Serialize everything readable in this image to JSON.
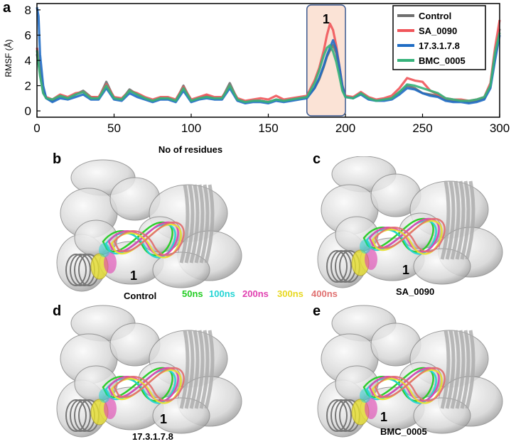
{
  "panels": {
    "a": "a",
    "b": "b",
    "c": "c",
    "d": "d",
    "e": "e"
  },
  "chart_data": {
    "type": "line",
    "xlabel": "No of residues",
    "ylabel": "RMSF (Å)",
    "xlim": [
      0,
      300
    ],
    "ylim": [
      -0.5,
      8.5
    ],
    "xticks": [
      "0",
      "50",
      "100",
      "150",
      "200",
      "250",
      "300"
    ],
    "yticks": [
      "0",
      "2",
      "4",
      "6",
      "8"
    ],
    "legend_position": "top-right",
    "highlight_region": {
      "label": "1",
      "x_from": 175,
      "x_to": 200
    },
    "series": [
      {
        "name": "Control",
        "color": "#6e6e6e",
        "x": [
          0,
          2,
          4,
          6,
          10,
          15,
          20,
          25,
          30,
          35,
          40,
          45,
          50,
          55,
          60,
          65,
          70,
          75,
          80,
          85,
          90,
          95,
          100,
          105,
          110,
          115,
          120,
          125,
          130,
          135,
          140,
          145,
          150,
          155,
          160,
          165,
          170,
          175,
          180,
          183,
          186,
          188,
          190,
          192,
          194,
          196,
          198,
          200,
          205,
          210,
          215,
          220,
          225,
          230,
          235,
          240,
          245,
          250,
          255,
          260,
          265,
          270,
          275,
          280,
          285,
          290,
          294,
          297,
          300
        ],
        "y": [
          4.5,
          3.0,
          1.5,
          1.0,
          0.8,
          1.2,
          1.0,
          1.3,
          1.6,
          1.1,
          1.0,
          2.3,
          1.0,
          0.9,
          1.7,
          1.3,
          1.0,
          0.8,
          1.0,
          1.0,
          0.8,
          2.0,
          0.8,
          1.0,
          1.2,
          1.0,
          1.0,
          2.2,
          0.9,
          0.7,
          0.8,
          0.8,
          0.7,
          0.9,
          0.8,
          0.9,
          1.0,
          1.1,
          1.8,
          2.5,
          3.5,
          4.3,
          4.8,
          5.2,
          4.6,
          3.4,
          1.8,
          1.1,
          1.0,
          1.4,
          1.0,
          0.8,
          0.9,
          1.0,
          1.5,
          2.0,
          1.8,
          1.4,
          1.3,
          1.2,
          0.9,
          0.8,
          0.8,
          0.7,
          0.8,
          1.0,
          2.0,
          4.5,
          6.5
        ]
      },
      {
        "name": "SA_0090",
        "color": "#f0555a",
        "x": [
          0,
          2,
          4,
          6,
          10,
          15,
          20,
          25,
          30,
          35,
          40,
          45,
          50,
          55,
          60,
          65,
          70,
          75,
          80,
          85,
          90,
          95,
          100,
          105,
          110,
          115,
          120,
          125,
          130,
          135,
          140,
          145,
          150,
          155,
          160,
          165,
          170,
          175,
          180,
          183,
          186,
          188,
          190,
          192,
          194,
          196,
          198,
          200,
          205,
          210,
          215,
          220,
          225,
          230,
          235,
          240,
          245,
          250,
          255,
          260,
          265,
          270,
          275,
          280,
          285,
          290,
          294,
          297,
          300
        ],
        "y": [
          5.0,
          3.2,
          1.6,
          1.1,
          0.9,
          1.3,
          1.1,
          1.4,
          1.5,
          1.1,
          1.1,
          2.1,
          1.1,
          1.0,
          1.6,
          1.4,
          1.1,
          0.9,
          1.1,
          1.1,
          0.9,
          1.9,
          0.9,
          1.1,
          1.3,
          1.1,
          1.1,
          2.0,
          1.0,
          0.8,
          0.9,
          1.0,
          0.9,
          1.2,
          0.9,
          1.0,
          1.1,
          1.2,
          2.4,
          3.4,
          4.8,
          6.0,
          6.9,
          6.4,
          5.2,
          3.6,
          2.0,
          1.2,
          1.1,
          1.5,
          1.1,
          0.9,
          1.0,
          1.2,
          1.8,
          2.6,
          2.4,
          2.3,
          1.6,
          1.3,
          1.0,
          0.9,
          0.9,
          0.8,
          0.9,
          1.1,
          2.2,
          5.0,
          7.2
        ]
      },
      {
        "name": "17.3.1.7.8",
        "color": "#1f6cc4",
        "x": [
          0,
          1,
          2,
          4,
          6,
          10,
          15,
          20,
          25,
          30,
          35,
          40,
          45,
          50,
          55,
          60,
          65,
          70,
          75,
          80,
          85,
          90,
          95,
          100,
          105,
          110,
          115,
          120,
          125,
          130,
          135,
          140,
          145,
          150,
          155,
          160,
          165,
          170,
          175,
          180,
          183,
          186,
          188,
          190,
          192,
          194,
          196,
          198,
          200,
          205,
          210,
          215,
          220,
          225,
          230,
          235,
          240,
          245,
          250,
          255,
          260,
          265,
          270,
          275,
          280,
          285,
          290,
          294,
          297,
          300
        ],
        "y": [
          8.2,
          7.5,
          4.5,
          2.0,
          1.0,
          0.7,
          1.0,
          0.9,
          1.1,
          1.3,
          0.9,
          0.9,
          1.8,
          0.9,
          0.8,
          1.4,
          1.1,
          0.9,
          0.7,
          0.9,
          0.9,
          0.7,
          1.6,
          0.7,
          0.9,
          1.0,
          0.9,
          0.9,
          1.8,
          0.8,
          0.6,
          0.7,
          0.7,
          0.6,
          0.8,
          0.7,
          0.8,
          0.9,
          1.0,
          1.8,
          2.6,
          3.6,
          4.4,
          5.0,
          5.6,
          4.9,
          3.6,
          2.0,
          1.1,
          1.0,
          1.3,
          0.9,
          0.8,
          0.8,
          0.9,
          1.3,
          1.8,
          1.7,
          1.4,
          1.2,
          1.1,
          0.8,
          0.7,
          0.7,
          0.6,
          0.7,
          0.9,
          1.8,
          4.0,
          6.0
        ]
      },
      {
        "name": "BMC_0005",
        "color": "#35b27a",
        "x": [
          0,
          2,
          4,
          6,
          10,
          15,
          20,
          25,
          30,
          35,
          40,
          45,
          50,
          55,
          60,
          65,
          70,
          75,
          80,
          85,
          90,
          95,
          100,
          105,
          110,
          115,
          120,
          125,
          130,
          135,
          140,
          145,
          150,
          155,
          160,
          165,
          170,
          175,
          180,
          183,
          186,
          188,
          190,
          192,
          194,
          196,
          198,
          200,
          205,
          210,
          215,
          220,
          225,
          230,
          235,
          240,
          245,
          250,
          255,
          260,
          265,
          270,
          275,
          280,
          285,
          290,
          294,
          297,
          300
        ],
        "y": [
          4.8,
          2.8,
          1.4,
          1.0,
          0.9,
          1.2,
          1.0,
          1.3,
          1.5,
          1.0,
          1.0,
          2.0,
          1.0,
          0.9,
          1.6,
          1.3,
          1.0,
          0.8,
          1.0,
          1.0,
          0.8,
          1.8,
          0.8,
          1.0,
          1.1,
          1.0,
          1.0,
          2.0,
          0.9,
          0.7,
          0.8,
          0.8,
          0.7,
          0.9,
          0.8,
          0.9,
          1.0,
          1.1,
          2.2,
          3.2,
          4.4,
          5.0,
          5.2,
          4.7,
          3.9,
          2.8,
          1.6,
          1.1,
          1.0,
          1.4,
          1.0,
          0.8,
          0.9,
          1.0,
          1.5,
          2.1,
          2.0,
          1.8,
          1.6,
          1.4,
          1.0,
          0.9,
          0.8,
          0.8,
          0.9,
          1.1,
          2.0,
          4.6,
          6.2
        ]
      }
    ]
  },
  "structure_legend": {
    "items": [
      {
        "label": "50ns",
        "color": "#22cc22"
      },
      {
        "label": "100ns",
        "color": "#22d4d4"
      },
      {
        "label": "200ns",
        "color": "#e040b0"
      },
      {
        "label": "300ns",
        "color": "#e8e030"
      },
      {
        "label": "400ns",
        "color": "#e07070"
      }
    ]
  },
  "structures": {
    "b": {
      "caption": "Control",
      "region": "1"
    },
    "c": {
      "caption": "SA_0090",
      "region": "1"
    },
    "d": {
      "caption": "17.3.1.7.8",
      "region": "1"
    },
    "e": {
      "caption": "BMC_0005",
      "region": "1"
    }
  }
}
